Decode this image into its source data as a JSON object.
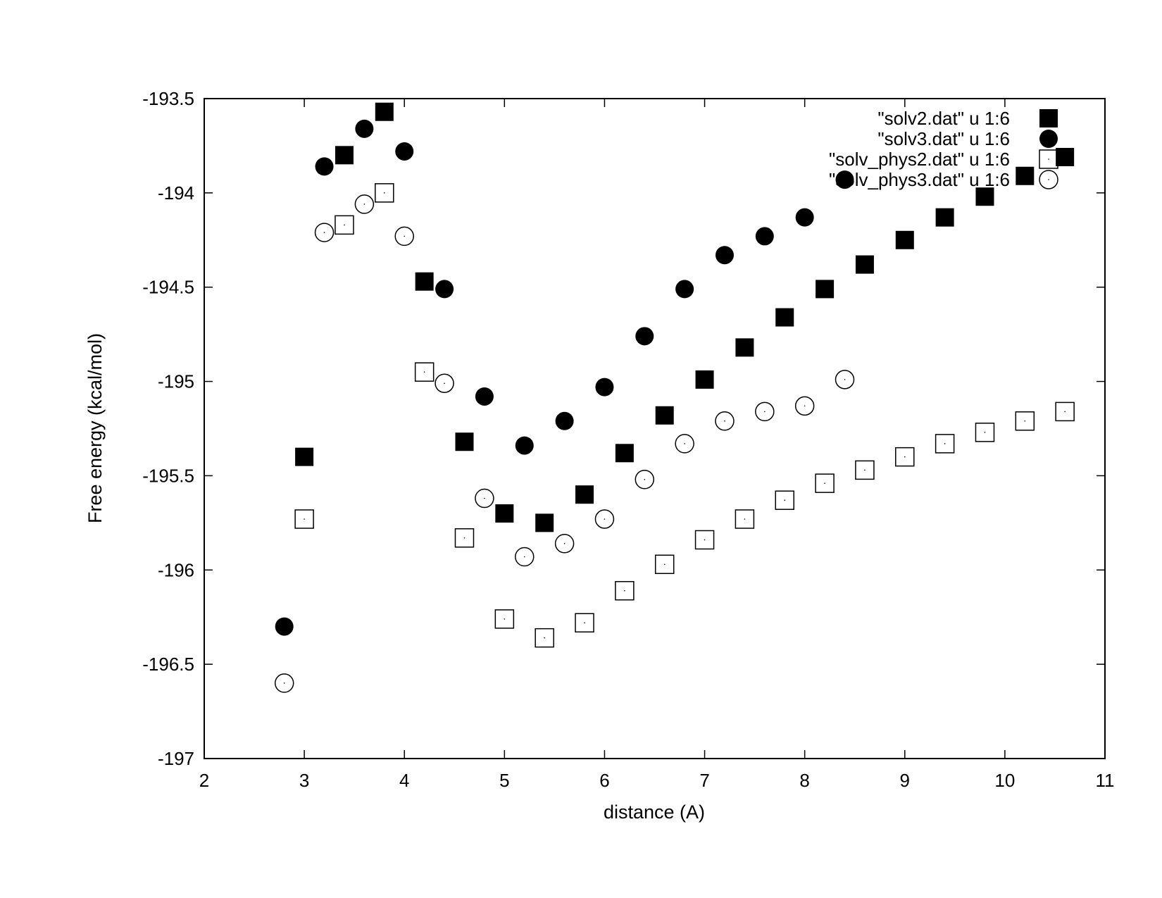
{
  "chart_data": {
    "type": "scatter",
    "title": "",
    "xlabel": "distance (A)",
    "ylabel": "Free energy (kcal/mol)",
    "xlim": [
      2,
      11
    ],
    "ylim": [
      -197,
      -193.5
    ],
    "xticks": [
      2,
      3,
      4,
      5,
      6,
      7,
      8,
      9,
      10,
      11
    ],
    "yticks": [
      -197,
      -196.5,
      -196,
      -195.5,
      -195,
      -194.5,
      -194,
      -193.5
    ],
    "xtick_labels": [
      "2",
      "3",
      "4",
      "5",
      "6",
      "7",
      "8",
      "9",
      "10",
      "11"
    ],
    "ytick_labels": [
      "-197",
      "-196.5",
      "-196",
      "-195.5",
      "-195",
      "-194.5",
      "-194",
      "-193.5"
    ],
    "grid": false,
    "legend_position": "top-right",
    "series": [
      {
        "name": "\"solv2.dat\" u 1:6",
        "marker": "filled-square",
        "color": "#000000",
        "x": [
          3.0,
          3.4,
          3.8,
          4.2,
          4.6,
          5.0,
          5.4,
          5.8,
          6.2,
          6.6,
          7.0,
          7.4,
          7.8,
          8.2,
          8.6,
          9.0,
          9.4,
          9.8,
          10.2,
          10.6
        ],
        "y": [
          -195.4,
          -193.8,
          -193.57,
          -194.47,
          -195.32,
          -195.7,
          -195.75,
          -195.6,
          -195.38,
          -195.18,
          -194.99,
          -194.82,
          -194.66,
          -194.51,
          -194.38,
          -194.25,
          -194.13,
          -194.02,
          -193.91,
          -193.81
        ]
      },
      {
        "name": "\"solv3.dat\" u 1:6",
        "marker": "filled-circle",
        "color": "#000000",
        "x": [
          2.8,
          3.2,
          3.6,
          4.0,
          4.4,
          4.8,
          5.2,
          5.6,
          6.0,
          6.4,
          6.8,
          7.2,
          7.6,
          8.0,
          8.4
        ],
        "y": [
          -196.3,
          -193.86,
          -193.66,
          -193.78,
          -194.51,
          -195.08,
          -195.34,
          -195.21,
          -195.03,
          -194.76,
          -194.51,
          -194.33,
          -194.23,
          -194.13,
          -193.93
        ]
      },
      {
        "name": "\"solv_phys2.dat\" u 1:6",
        "marker": "open-square",
        "color": "#000000",
        "x": [
          3.0,
          3.4,
          3.8,
          4.2,
          4.6,
          5.0,
          5.4,
          5.8,
          6.2,
          6.6,
          7.0,
          7.4,
          7.8,
          8.2,
          8.6,
          9.0,
          9.4,
          9.8,
          10.2,
          10.6
        ],
        "y": [
          -195.73,
          -194.17,
          -194.0,
          -194.95,
          -195.83,
          -196.26,
          -196.36,
          -196.28,
          -196.11,
          -195.97,
          -195.84,
          -195.73,
          -195.63,
          -195.54,
          -195.47,
          -195.4,
          -195.33,
          -195.27,
          -195.21,
          -195.16
        ]
      },
      {
        "name": "\"solv_phys3.dat\" u 1:6",
        "marker": "open-circle",
        "color": "#000000",
        "x": [
          2.8,
          3.2,
          3.6,
          4.0,
          4.4,
          4.8,
          5.2,
          5.6,
          6.0,
          6.4,
          6.8,
          7.2,
          7.6,
          8.0,
          8.4
        ],
        "y": [
          -196.6,
          -194.21,
          -194.06,
          -194.23,
          -195.01,
          -195.62,
          -195.93,
          -195.86,
          -195.73,
          -195.52,
          -195.33,
          -195.21,
          -195.16,
          -195.13,
          -194.99
        ]
      }
    ]
  }
}
